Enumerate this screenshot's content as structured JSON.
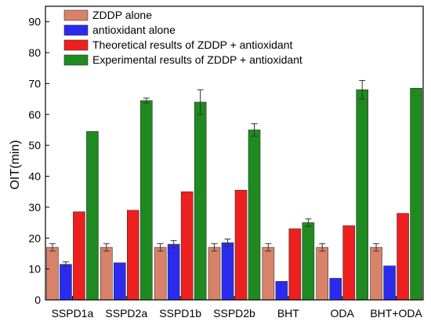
{
  "chart_data": {
    "type": "bar",
    "ylabel": "OIT(min)",
    "xlabel": "",
    "ylim": [
      0,
      95
    ],
    "yticks": [
      0,
      10,
      20,
      30,
      40,
      50,
      60,
      70,
      80,
      90
    ],
    "grid": false,
    "legend_position": "top-left",
    "categories": [
      "SSPD1a",
      "SSPD2a",
      "SSPD1b",
      "SSPD2b",
      "BHT",
      "ODA",
      "BHT+ODA"
    ],
    "series": [
      {
        "name": "ZDDP alone",
        "color": "#d9826a",
        "values": [
          17,
          17,
          17,
          17,
          17,
          17,
          17
        ],
        "errors": [
          1.2,
          1.2,
          1.2,
          1.2,
          1.2,
          1.2,
          1.2
        ]
      },
      {
        "name": "antioxidant alone",
        "color": "#2b2bf0",
        "values": [
          11.5,
          12,
          18,
          18.5,
          6,
          7,
          11
        ],
        "errors": [
          0.8,
          0,
          1.2,
          1.2,
          0,
          0,
          0
        ]
      },
      {
        "name": "Theoretical results of ZDDP + antioxidant",
        "color": "#ee1f1f",
        "values": [
          28.5,
          29,
          35,
          35.5,
          23,
          24,
          28
        ],
        "errors": [
          0,
          0,
          0,
          0,
          0,
          0,
          0
        ]
      },
      {
        "name": "Experimental results of ZDDP + antioxidant",
        "color": "#1f8a1f",
        "values": [
          54.5,
          64.5,
          64,
          55,
          25,
          68,
          68.5
        ],
        "errors": [
          0,
          0.8,
          4,
          2,
          1.2,
          3,
          0
        ]
      }
    ]
  }
}
